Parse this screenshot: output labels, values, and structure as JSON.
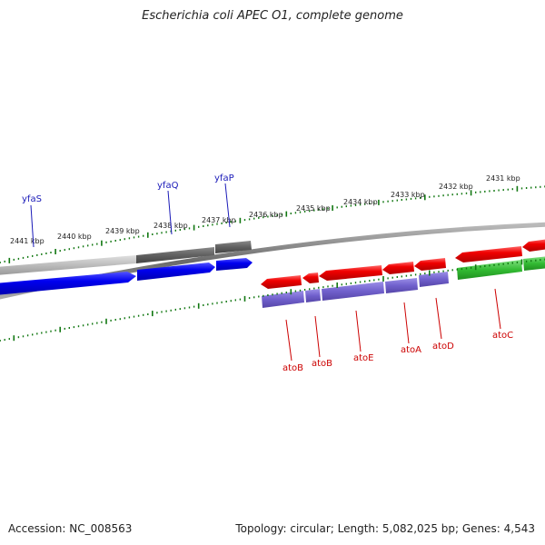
{
  "header": {
    "title": "Escherichia coli APEC O1, complete genome"
  },
  "footer": {
    "accession": "Accession: NC_008563",
    "topology": "Topology: circular; Length: 5,082,025 bp; Genes: 4,543"
  },
  "scale": {
    "ticks": [
      "2441 kbp",
      "2440 kbp",
      "2439 kbp",
      "2438 kbp",
      "2437 kbp",
      "2436 kbp",
      "2435 kbp",
      "2434 kbp",
      "2433 kbp",
      "2432 kbp",
      "2431 kbp"
    ]
  },
  "genes_top": [
    "yfaS",
    "yfaQ",
    "yfaP"
  ],
  "genes_bottom": [
    "atoB",
    "atoB",
    "atoE",
    "atoA",
    "atoD",
    "atoC"
  ],
  "colors": {
    "forward_cds": "#0000ee",
    "reverse_cds": "#ee0000",
    "rna_track": "#7766cc",
    "regulator_track": "#33bb33",
    "backbone": "#777777",
    "tick": "#117711",
    "top_label": "#1a1ab8",
    "bottom_label": "#cc0000"
  }
}
